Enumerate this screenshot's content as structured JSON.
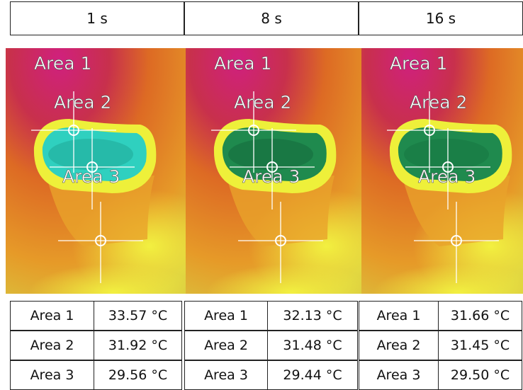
{
  "header": [
    "1 s",
    "8 s",
    "16 s"
  ],
  "panels": [
    {
      "image_labels": [
        "Area 1",
        "Area 2",
        "Area 3"
      ],
      "rows": [
        [
          "Area 1",
          "33.57 °C"
        ],
        [
          "Area 2",
          "31.92 °C"
        ],
        [
          "Area 3",
          "29.56 °C"
        ]
      ]
    },
    {
      "image_labels": [
        "Area 1",
        "Area 2",
        "Area 3"
      ],
      "rows": [
        [
          "Area 1",
          "32.13 °C"
        ],
        [
          "Area 2",
          "31.48 °C"
        ],
        [
          "Area 3",
          "29.44 °C"
        ]
      ]
    },
    {
      "image_labels": [
        "Area 1",
        "Area 2",
        "Area 3"
      ],
      "rows": [
        [
          "Area 1",
          "31.66 °C"
        ],
        [
          "Area 2",
          "31.45 °C"
        ],
        [
          "Area 3",
          "29.50 °C"
        ]
      ]
    }
  ]
}
